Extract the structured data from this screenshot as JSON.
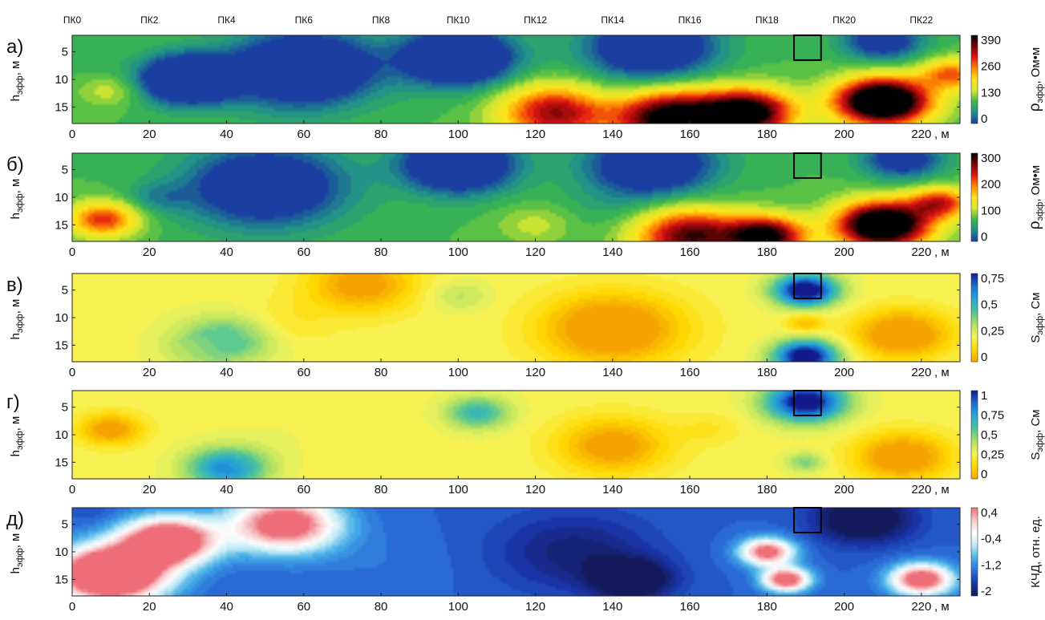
{
  "chart_data": {
    "type": "heatmap",
    "pickets": [
      "ПК0",
      "ПК2",
      "ПК4",
      "ПК6",
      "ПК8",
      "ПК10",
      "ПК12",
      "ПК14",
      "ПК16",
      "ПК18",
      "ПК20",
      "ПК22"
    ],
    "x_ticks": [
      "0",
      "20",
      "40",
      "60",
      "80",
      "100",
      "120",
      "140",
      "160",
      "180",
      "200",
      "220"
    ],
    "x_unit": ", м",
    "y_ticks": [
      "5",
      "10",
      "15"
    ],
    "y_label_main": "h",
    "y_label_sub": "эфф",
    "y_label_unit": ", м",
    "xlim": [
      0,
      230
    ],
    "ylim": [
      2,
      18
    ],
    "marker_box": {
      "x": [
        187,
        194
      ],
      "y": [
        2,
        6.5
      ]
    },
    "panels": [
      {
        "letter": "а)",
        "cbar_symbol": "ρ",
        "cbar_sub": "эфф",
        "cbar_unit": ", Ом•м",
        "cbar_ticks": [
          "390",
          "260",
          "130",
          "0"
        ],
        "colormap": "rainbow_black",
        "vmin": 0,
        "vmax": 390,
        "field": [
          {
            "x": 10,
            "y": 12,
            "value": 150,
            "spread": 8
          },
          {
            "x": 5,
            "y": 8,
            "value": 90,
            "spread": 7
          },
          {
            "x": 30,
            "y": 10,
            "value": -140,
            "spread": 12
          },
          {
            "x": 60,
            "y": 8,
            "value": -120,
            "spread": 18
          },
          {
            "x": 100,
            "y": 6,
            "value": -130,
            "spread": 14
          },
          {
            "x": 150,
            "y": 4,
            "value": -90,
            "spread": 16
          },
          {
            "x": 125,
            "y": 16,
            "value": 330,
            "spread": 14
          },
          {
            "x": 155,
            "y": 17,
            "value": 420,
            "spread": 14
          },
          {
            "x": 175,
            "y": 16,
            "value": 420,
            "spread": 12
          },
          {
            "x": 140,
            "y": 11,
            "value": 90,
            "spread": 14
          },
          {
            "x": 210,
            "y": 14,
            "value": 520,
            "spread": 12
          },
          {
            "x": 228,
            "y": 9,
            "value": 260,
            "spread": 8
          },
          {
            "x": 55,
            "y": 17,
            "value": 90,
            "spread": 12
          },
          {
            "x": 210,
            "y": 3,
            "value": -40,
            "spread": 10
          }
        ]
      },
      {
        "letter": "б)",
        "cbar_symbol": "ρ",
        "cbar_sub": "эфф",
        "cbar_unit": ", Ом•м",
        "cbar_ticks": [
          "300",
          "200",
          "100",
          "0"
        ],
        "colormap": "rainbow_black",
        "vmin": 0,
        "vmax": 300,
        "field": [
          {
            "x": 8,
            "y": 14,
            "value": 220,
            "spread": 9
          },
          {
            "x": 22,
            "y": 10,
            "value": 40,
            "spread": 8
          },
          {
            "x": 50,
            "y": 8,
            "value": -60,
            "spread": 20
          },
          {
            "x": 100,
            "y": 4,
            "value": -90,
            "spread": 14
          },
          {
            "x": 150,
            "y": 4,
            "value": -60,
            "spread": 16
          },
          {
            "x": 120,
            "y": 15,
            "value": 110,
            "spread": 10
          },
          {
            "x": 160,
            "y": 17,
            "value": 280,
            "spread": 14
          },
          {
            "x": 180,
            "y": 17,
            "value": 300,
            "spread": 10
          },
          {
            "x": 210,
            "y": 15,
            "value": 380,
            "spread": 12
          },
          {
            "x": 225,
            "y": 11,
            "value": 220,
            "spread": 8
          },
          {
            "x": 140,
            "y": 12,
            "value": 60,
            "spread": 14
          },
          {
            "x": 215,
            "y": 3,
            "value": -30,
            "spread": 10
          }
        ]
      },
      {
        "letter": "в)",
        "cbar_symbol": "S",
        "cbar_sub": "эфф",
        "cbar_unit": ", См",
        "cbar_ticks": [
          "0,75",
          "0,5",
          "0,25",
          "0"
        ],
        "colormap": "conductance",
        "vmin": 0,
        "vmax": 0.75,
        "field": [
          {
            "x": 40,
            "y": 14,
            "value": 0.45,
            "spread": 12
          },
          {
            "x": 30,
            "y": 16,
            "value": 0.25,
            "spread": 10
          },
          {
            "x": 55,
            "y": 11,
            "value": 0.15,
            "spread": 12
          },
          {
            "x": 100,
            "y": 6,
            "value": 0.3,
            "spread": 8
          },
          {
            "x": 190,
            "y": 5,
            "value": 0.85,
            "spread": 8
          },
          {
            "x": 190,
            "y": 17,
            "value": 0.85,
            "spread": 8
          },
          {
            "x": 190,
            "y": 11,
            "value": 0.05,
            "spread": 5
          },
          {
            "x": 140,
            "y": 12,
            "value": -0.1,
            "spread": 18
          },
          {
            "x": 215,
            "y": 13,
            "value": -0.1,
            "spread": 12
          },
          {
            "x": 75,
            "y": 4,
            "value": -0.03,
            "spread": 14
          }
        ]
      },
      {
        "letter": "г)",
        "cbar_symbol": "S",
        "cbar_sub": "эфф",
        "cbar_unit": ", См",
        "cbar_ticks": [
          "1",
          "0,75",
          "0,5",
          "0,25",
          "0"
        ],
        "colormap": "conductance",
        "vmin": 0,
        "vmax": 1,
        "field": [
          {
            "x": 40,
            "y": 16,
            "value": 0.8,
            "spread": 10
          },
          {
            "x": 55,
            "y": 12,
            "value": 0.3,
            "spread": 16
          },
          {
            "x": 75,
            "y": 14,
            "value": 0.25,
            "spread": 14
          },
          {
            "x": 105,
            "y": 6,
            "value": 0.65,
            "spread": 8
          },
          {
            "x": 190,
            "y": 4,
            "value": 1.1,
            "spread": 10
          },
          {
            "x": 190,
            "y": 15,
            "value": 0.5,
            "spread": 5
          },
          {
            "x": 140,
            "y": 12,
            "value": -0.05,
            "spread": 14
          },
          {
            "x": 215,
            "y": 14,
            "value": -0.1,
            "spread": 12
          },
          {
            "x": 10,
            "y": 9,
            "value": -0.05,
            "spread": 8
          },
          {
            "x": 165,
            "y": 9,
            "value": 0.2,
            "spread": 8
          }
        ]
      },
      {
        "letter": "д)",
        "cbar_symbol": "КЧД",
        "cbar_sub": "",
        "cbar_unit": ", отн. ед.",
        "cbar_ticks": [
          "0,4",
          "-0,4",
          "-1,2",
          "-2"
        ],
        "colormap": "diverging",
        "vmin": -2,
        "vmax": 0.4,
        "field": [
          {
            "x": 10,
            "y": 14,
            "value": 1.8,
            "spread": 14
          },
          {
            "x": 25,
            "y": 8,
            "value": 1.2,
            "spread": 12
          },
          {
            "x": 55,
            "y": 5,
            "value": 0.8,
            "spread": 14
          },
          {
            "x": 5,
            "y": 3,
            "value": -1.5,
            "spread": 6
          },
          {
            "x": 80,
            "y": 12,
            "value": -1.3,
            "spread": 18
          },
          {
            "x": 130,
            "y": 10,
            "value": -1.9,
            "spread": 20
          },
          {
            "x": 145,
            "y": 15,
            "value": -2.4,
            "spread": 10
          },
          {
            "x": 205,
            "y": 4,
            "value": -2.4,
            "spread": 12
          },
          {
            "x": 185,
            "y": 15,
            "value": 0.8,
            "spread": 6
          },
          {
            "x": 180,
            "y": 10,
            "value": 0.6,
            "spread": 7
          },
          {
            "x": 220,
            "y": 15,
            "value": 0.8,
            "spread": 8
          }
        ]
      }
    ]
  },
  "colormaps": {
    "rainbow_black": [
      "#1a3fa0",
      "#1f8f8c",
      "#3db84a",
      "#d7e831",
      "#ffe31a",
      "#ff8a00",
      "#e01414",
      "#7a0606",
      "#000000"
    ],
    "conductance": [
      "#f5a400",
      "#ffd800",
      "#f6f55a",
      "#aee064",
      "#4cc49a",
      "#27a6d6",
      "#1a6fd4",
      "#121a8c"
    ],
    "diverging": [
      "#141a5c",
      "#1a35a8",
      "#2a6fd8",
      "#46b0e8",
      "#bfe9f5",
      "#ffffff",
      "#f7c9cc",
      "#ee6e78"
    ]
  }
}
